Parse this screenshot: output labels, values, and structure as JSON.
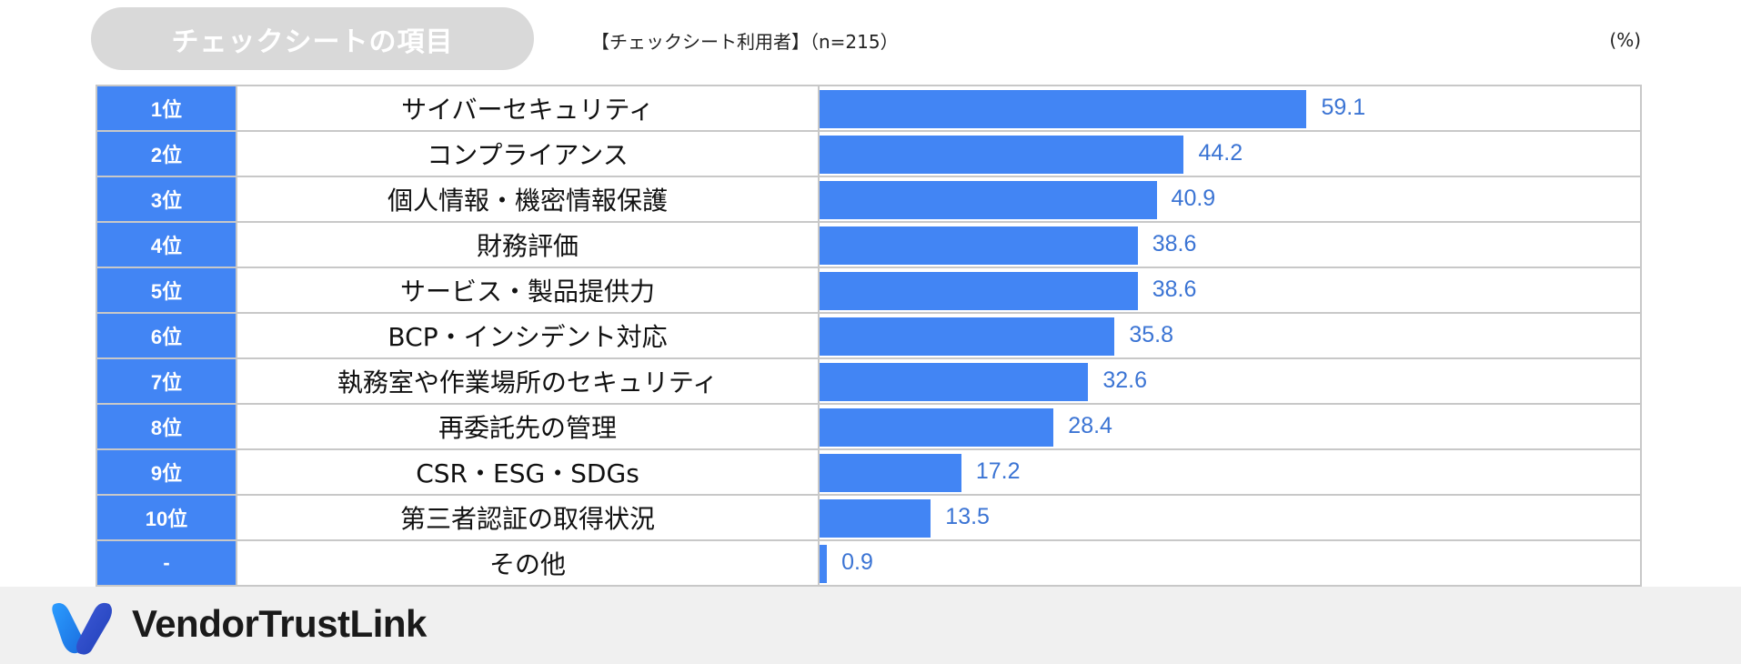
{
  "header": {
    "badge": "チェックシートの項目",
    "sample": "【チェックシート利用者】（n=215）",
    "unit": "(%)"
  },
  "chart_data": {
    "type": "bar",
    "orientation": "horizontal",
    "ranks": [
      "1位",
      "2位",
      "3位",
      "4位",
      "5位",
      "6位",
      "7位",
      "8位",
      "9位",
      "10位",
      "-"
    ],
    "categories": [
      "サイバーセキュリティ",
      "コンプライアンス",
      "個人情報・機密情報保護",
      "財務評価",
      "サービス・製品提供力",
      "BCP・インシデント対応",
      "執務室や作業場所のセキュリティ",
      "再委託先の管理",
      "CSR・ESG・SDGs",
      "第三者認証の取得状況",
      "その他"
    ],
    "values": [
      59.1,
      44.2,
      40.9,
      38.6,
      38.6,
      35.8,
      32.6,
      28.4,
      17.2,
      13.5,
      0.9
    ],
    "value_labels": [
      "59.1",
      "44.2",
      "40.9",
      "38.6",
      "38.6",
      "35.8",
      "32.6",
      "28.4",
      "17.2",
      "13.5",
      "0.9"
    ],
    "xlim": [
      0,
      100
    ],
    "bar_color": "#4285f4",
    "label_color": "#3b74d4",
    "grid": false
  },
  "footer": {
    "brand": "VendorTrustLink",
    "logo_icon": "v-logo-icon",
    "background": "#f0f0f0"
  }
}
